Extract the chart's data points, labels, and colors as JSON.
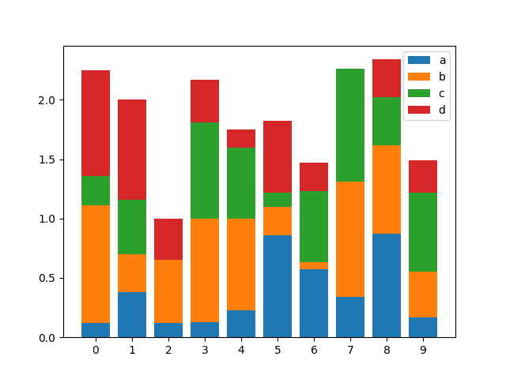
{
  "categories": [
    0,
    1,
    2,
    3,
    4,
    5,
    6,
    7,
    8,
    9
  ],
  "series": {
    "a": [
      0.12,
      0.38,
      0.12,
      0.13,
      0.23,
      0.86,
      0.57,
      0.34,
      0.87,
      0.17
    ],
    "b": [
      0.99,
      0.32,
      0.53,
      0.87,
      0.77,
      0.24,
      0.06,
      0.97,
      0.75,
      0.38
    ],
    "c": [
      0.25,
      0.46,
      0.0,
      0.81,
      0.6,
      0.12,
      0.6,
      0.95,
      0.4,
      0.67
    ],
    "d": [
      0.89,
      0.84,
      0.35,
      0.36,
      0.15,
      0.6,
      0.24,
      0.0,
      0.32,
      0.27
    ]
  },
  "colors": {
    "a": "#1f77b4",
    "b": "#ff7f0e",
    "c": "#2ca02c",
    "d": "#d62728"
  },
  "legend_labels": [
    "a",
    "b",
    "c",
    "d"
  ],
  "figsize": [
    6.4,
    4.8
  ],
  "dpi": 100
}
